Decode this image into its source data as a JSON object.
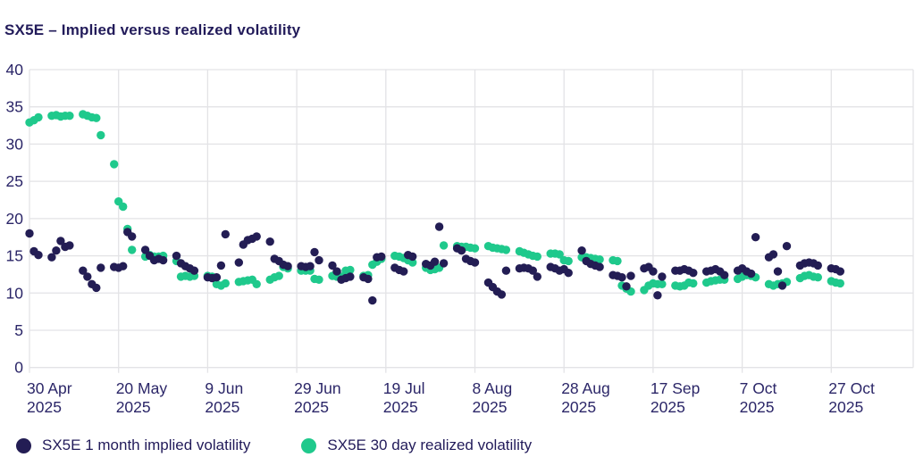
{
  "title": "SX5E – Implied versus realized volatility",
  "colors": {
    "implied_navy": "#231d54",
    "realized_green": "#1fc98c",
    "gridline": "#e3e3e6",
    "axis_text": "#2b2668",
    "title_text": "#221b5a",
    "background": "#ffffff"
  },
  "legend": {
    "implied_label": "SX5E 1 month implied volatility",
    "realized_label": "SX5E 30 day realized volatility"
  },
  "chart_data": {
    "type": "scatter",
    "title": "SX5E – Implied versus realized volatility",
    "xlabel": "",
    "ylabel": "",
    "ylim": [
      0,
      40
    ],
    "yticks": [
      0,
      5,
      10,
      15,
      20,
      25,
      30,
      35,
      40
    ],
    "grid": "on",
    "legend_position": "bottom-left",
    "x_unit": "days since 30 Apr 2025 (weekdays only)",
    "xticks": [
      {
        "day": 0,
        "label": "30 Apr",
        "year": "2025"
      },
      {
        "day": 20,
        "label": "20 May",
        "year": "2025"
      },
      {
        "day": 40,
        "label": "9 Jun",
        "year": "2025"
      },
      {
        "day": 60,
        "label": "29 Jun",
        "year": "2025"
      },
      {
        "day": 80,
        "label": "19 Jul",
        "year": "2025"
      },
      {
        "day": 100,
        "label": "8 Aug",
        "year": "2025"
      },
      {
        "day": 120,
        "label": "28 Aug",
        "year": "2025"
      },
      {
        "day": 140,
        "label": "17 Sep",
        "year": "2025"
      },
      {
        "day": 160,
        "label": "7 Oct",
        "year": "2025"
      },
      {
        "day": 180,
        "label": "27 Oct",
        "year": "2025"
      }
    ],
    "days": [
      0,
      1,
      2,
      5,
      6,
      7,
      8,
      9,
      12,
      13,
      14,
      15,
      16,
      19,
      20,
      21,
      22,
      23,
      26,
      27,
      28,
      29,
      30,
      33,
      34,
      35,
      36,
      37,
      40,
      41,
      42,
      43,
      44,
      47,
      48,
      49,
      50,
      51,
      54,
      55,
      56,
      57,
      58,
      61,
      62,
      63,
      64,
      65,
      68,
      69,
      70,
      71,
      72,
      75,
      76,
      77,
      78,
      79,
      82,
      83,
      84,
      85,
      86,
      89,
      90,
      91,
      92,
      93,
      96,
      97,
      98,
      99,
      100,
      103,
      104,
      105,
      106,
      107,
      110,
      111,
      112,
      113,
      114,
      117,
      118,
      119,
      120,
      121,
      124,
      125,
      126,
      127,
      128,
      131,
      132,
      133,
      134,
      135,
      138,
      139,
      140,
      141,
      142,
      145,
      146,
      147,
      148,
      149,
      152,
      153,
      154,
      155,
      156,
      159,
      160,
      161,
      162,
      163,
      166,
      167,
      168,
      169,
      170,
      173,
      174,
      175,
      176,
      177,
      180,
      181,
      182
    ],
    "series": [
      {
        "name": "SX5E 30 day realized volatility",
        "color": "#1fc98c",
        "values": [
          32.9,
          33.2,
          33.6,
          33.8,
          33.9,
          33.7,
          33.8,
          33.8,
          34.0,
          33.8,
          33.6,
          33.5,
          31.2,
          27.3,
          22.3,
          21.6,
          18.6,
          15.8,
          14.9,
          15.1,
          14.9,
          14.9,
          15.0,
          14.3,
          12.2,
          12.3,
          12.2,
          12.3,
          12.3,
          12.2,
          11.2,
          11.0,
          11.3,
          11.5,
          11.6,
          11.7,
          11.8,
          11.2,
          11.8,
          12.1,
          12.3,
          13.5,
          13.3,
          13.0,
          13.0,
          13.0,
          11.9,
          11.8,
          12.3,
          12.2,
          12.2,
          13.0,
          13.1,
          12.3,
          12.4,
          13.8,
          14.2,
          14.6,
          15.0,
          14.9,
          14.7,
          14.4,
          14.1,
          13.4,
          13.1,
          13.2,
          13.4,
          16.4,
          16.3,
          16.2,
          16.2,
          16.1,
          16.0,
          16.3,
          16.1,
          16.0,
          15.9,
          15.8,
          15.6,
          15.4,
          15.2,
          15.0,
          14.9,
          15.3,
          15.3,
          15.2,
          14.4,
          14.3,
          14.8,
          14.8,
          14.7,
          14.6,
          14.5,
          14.4,
          14.3,
          11.0,
          10.6,
          10.2,
          10.4,
          11.0,
          11.3,
          11.2,
          11.2,
          11.0,
          10.9,
          11.0,
          11.4,
          11.3,
          11.4,
          11.6,
          11.7,
          11.8,
          11.8,
          11.9,
          12.2,
          12.4,
          12.3,
          12.1,
          11.2,
          11.0,
          11.2,
          11.3,
          11.5,
          12.0,
          12.3,
          12.4,
          12.2,
          12.1,
          11.6,
          11.4,
          11.3
        ]
      },
      {
        "name": "SX5E 1 month implied volatility",
        "color": "#231d54",
        "values": [
          18.0,
          15.6,
          15.1,
          14.8,
          15.7,
          17.0,
          16.2,
          16.4,
          13.0,
          12.2,
          11.2,
          10.7,
          13.4,
          13.5,
          13.4,
          13.6,
          18.2,
          17.6,
          15.8,
          15.0,
          14.4,
          14.6,
          14.4,
          15.0,
          14.0,
          13.6,
          13.3,
          13.0,
          12.1,
          12.0,
          12.1,
          13.7,
          17.9,
          14.1,
          16.5,
          17.1,
          17.3,
          17.6,
          16.9,
          14.6,
          14.3,
          13.8,
          13.6,
          13.6,
          13.5,
          13.6,
          15.5,
          14.4,
          13.7,
          12.9,
          11.8,
          12.0,
          12.2,
          12.1,
          11.9,
          9.0,
          14.8,
          14.9,
          13.4,
          13.1,
          12.9,
          15.1,
          14.9,
          13.9,
          13.7,
          14.2,
          18.9,
          14.0,
          16.0,
          15.7,
          14.6,
          14.3,
          14.1,
          11.4,
          10.8,
          10.2,
          9.8,
          13.0,
          13.3,
          13.4,
          13.3,
          13.0,
          12.2,
          13.5,
          13.3,
          13.0,
          13.2,
          12.7,
          15.7,
          14.3,
          13.9,
          13.7,
          13.5,
          12.4,
          12.3,
          12.1,
          10.9,
          12.3,
          13.3,
          13.5,
          12.9,
          9.7,
          12.2,
          13.0,
          13.0,
          13.2,
          13.0,
          12.7,
          12.9,
          13.0,
          13.2,
          12.9,
          12.4,
          13.0,
          13.3,
          12.9,
          12.6,
          17.5,
          14.8,
          15.2,
          12.9,
          11.0,
          16.3,
          13.7,
          14.0,
          14.1,
          14.0,
          13.7,
          13.3,
          13.2,
          12.9
        ]
      }
    ]
  }
}
